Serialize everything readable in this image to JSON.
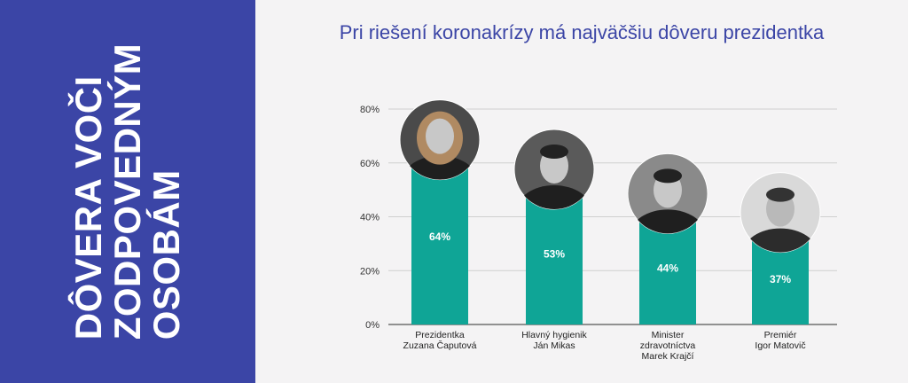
{
  "side": {
    "lines": [
      "DÔVERA VOČI",
      "ZODPOVEDNÝM",
      "OSOBÁM"
    ]
  },
  "chart_data": {
    "type": "bar",
    "title": "Pri riešení koronakrízy má najväčšiu dôveru prezidentka",
    "categories": [
      [
        "Prezidentka",
        "Zuzana Čaputová"
      ],
      [
        "Hlavný hygienik",
        "Ján Mikas"
      ],
      [
        "Minister",
        "zdravotníctva",
        "Marek Krajčí"
      ],
      [
        "Premiér",
        "Igor Matovič"
      ]
    ],
    "values": [
      64,
      53,
      44,
      37
    ],
    "value_labels": [
      "64%",
      "53%",
      "44%",
      "37%"
    ],
    "ylim": [
      0,
      80
    ],
    "yticks": [
      0,
      20,
      40,
      60,
      80
    ],
    "ytick_labels": [
      "0%",
      "20%",
      "40%",
      "60%",
      "80%"
    ],
    "bar_color": "#0fa596",
    "grid": true,
    "portraits": [
      "portrait-zuzana-caputova",
      "portrait-jan-mikas",
      "portrait-marek-krajci",
      "portrait-igor-matovic"
    ]
  }
}
